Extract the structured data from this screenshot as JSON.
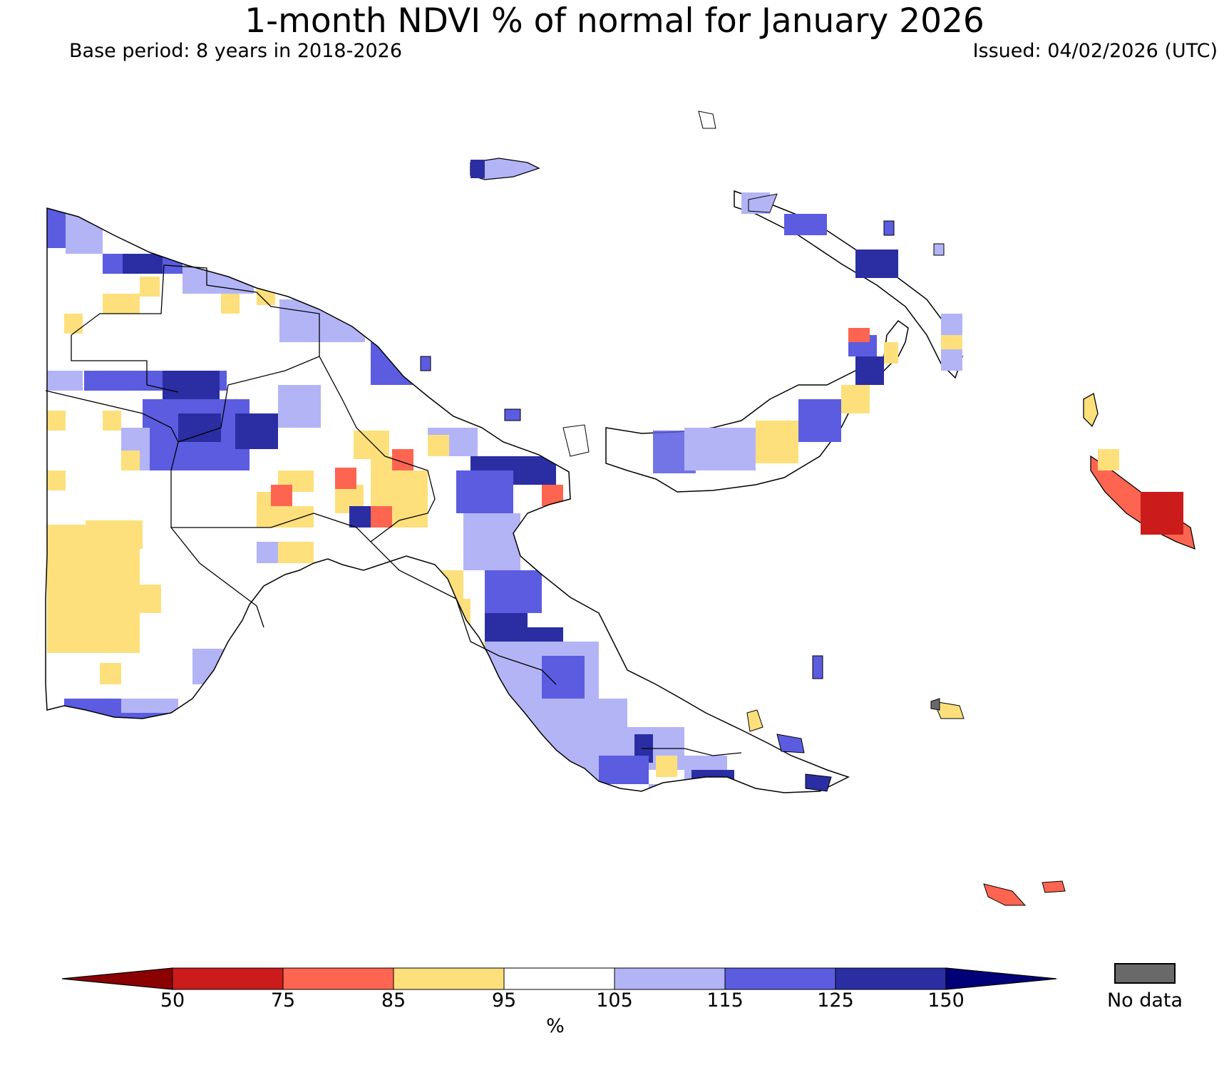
{
  "title": "1-month NDVI % of normal for January 2026",
  "base_period": "Base period: 8 years in 2018-2026",
  "issued": "Issued: 04/02/2026 (UTC)",
  "legend": {
    "unit": "%",
    "ticks": [
      "50",
      "75",
      "85",
      "95",
      "105",
      "115",
      "125",
      "150"
    ],
    "bins": [
      {
        "range": "<50",
        "color": "#8b0000"
      },
      {
        "range": "50-75",
        "color": "#cc1b1b"
      },
      {
        "range": "75-85",
        "color": "#fd6550"
      },
      {
        "range": "85-95",
        "color": "#fde07c"
      },
      {
        "range": "95-105",
        "color": "#ffffff"
      },
      {
        "range": "105-115",
        "color": "#b3b4f6"
      },
      {
        "range": "115-125",
        "color": "#5b5ce0"
      },
      {
        "range": "125-150",
        "color": "#2a2ea2"
      },
      {
        "range": ">150",
        "color": "#000078"
      }
    ],
    "no_data_label": "No data",
    "no_data_color": "#696969"
  }
}
